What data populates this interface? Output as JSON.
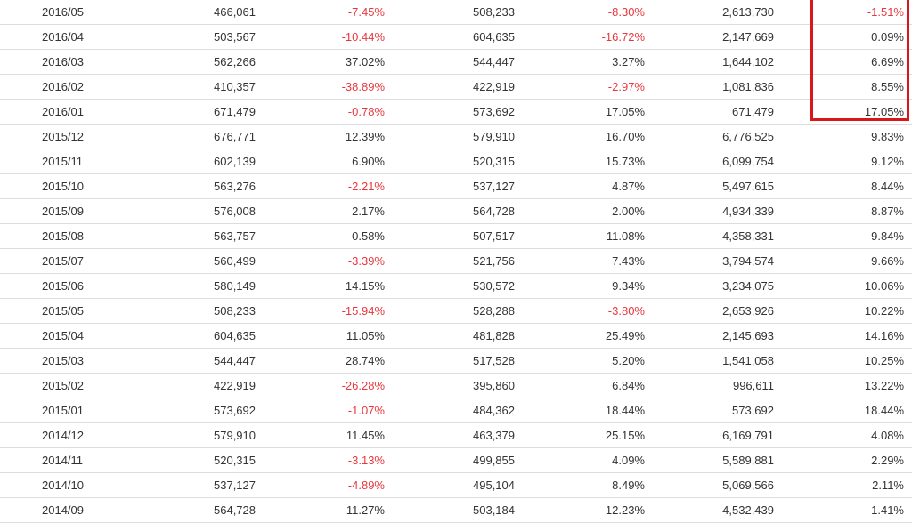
{
  "colors": {
    "negative": "#e8383d",
    "text": "#333333",
    "highlight_border": "#d9161c",
    "row_divider": "#dddddd"
  },
  "table": {
    "rows": [
      {
        "date": "2016/05",
        "v1": "466,061",
        "p1": "-7.45%",
        "v2": "508,233",
        "p2": "-8.30%",
        "v3": "2,613,730",
        "p3": "-1.51%"
      },
      {
        "date": "2016/04",
        "v1": "503,567",
        "p1": "-10.44%",
        "v2": "604,635",
        "p2": "-16.72%",
        "v3": "2,147,669",
        "p3": "0.09%"
      },
      {
        "date": "2016/03",
        "v1": "562,266",
        "p1": "37.02%",
        "v2": "544,447",
        "p2": "3.27%",
        "v3": "1,644,102",
        "p3": "6.69%"
      },
      {
        "date": "2016/02",
        "v1": "410,357",
        "p1": "-38.89%",
        "v2": "422,919",
        "p2": "-2.97%",
        "v3": "1,081,836",
        "p3": "8.55%"
      },
      {
        "date": "2016/01",
        "v1": "671,479",
        "p1": "-0.78%",
        "v2": "573,692",
        "p2": "17.05%",
        "v3": "671,479",
        "p3": "17.05%"
      },
      {
        "date": "2015/12",
        "v1": "676,771",
        "p1": "12.39%",
        "v2": "579,910",
        "p2": "16.70%",
        "v3": "6,776,525",
        "p3": "9.83%"
      },
      {
        "date": "2015/11",
        "v1": "602,139",
        "p1": "6.90%",
        "v2": "520,315",
        "p2": "15.73%",
        "v3": "6,099,754",
        "p3": "9.12%"
      },
      {
        "date": "2015/10",
        "v1": "563,276",
        "p1": "-2.21%",
        "v2": "537,127",
        "p2": "4.87%",
        "v3": "5,497,615",
        "p3": "8.44%"
      },
      {
        "date": "2015/09",
        "v1": "576,008",
        "p1": "2.17%",
        "v2": "564,728",
        "p2": "2.00%",
        "v3": "4,934,339",
        "p3": "8.87%"
      },
      {
        "date": "2015/08",
        "v1": "563,757",
        "p1": "0.58%",
        "v2": "507,517",
        "p2": "11.08%",
        "v3": "4,358,331",
        "p3": "9.84%"
      },
      {
        "date": "2015/07",
        "v1": "560,499",
        "p1": "-3.39%",
        "v2": "521,756",
        "p2": "7.43%",
        "v3": "3,794,574",
        "p3": "9.66%"
      },
      {
        "date": "2015/06",
        "v1": "580,149",
        "p1": "14.15%",
        "v2": "530,572",
        "p2": "9.34%",
        "v3": "3,234,075",
        "p3": "10.06%"
      },
      {
        "date": "2015/05",
        "v1": "508,233",
        "p1": "-15.94%",
        "v2": "528,288",
        "p2": "-3.80%",
        "v3": "2,653,926",
        "p3": "10.22%"
      },
      {
        "date": "2015/04",
        "v1": "604,635",
        "p1": "11.05%",
        "v2": "481,828",
        "p2": "25.49%",
        "v3": "2,145,693",
        "p3": "14.16%"
      },
      {
        "date": "2015/03",
        "v1": "544,447",
        "p1": "28.74%",
        "v2": "517,528",
        "p2": "5.20%",
        "v3": "1,541,058",
        "p3": "10.25%"
      },
      {
        "date": "2015/02",
        "v1": "422,919",
        "p1": "-26.28%",
        "v2": "395,860",
        "p2": "6.84%",
        "v3": "996,611",
        "p3": "13.22%"
      },
      {
        "date": "2015/01",
        "v1": "573,692",
        "p1": "-1.07%",
        "v2": "484,362",
        "p2": "18.44%",
        "v3": "573,692",
        "p3": "18.44%"
      },
      {
        "date": "2014/12",
        "v1": "579,910",
        "p1": "11.45%",
        "v2": "463,379",
        "p2": "25.15%",
        "v3": "6,169,791",
        "p3": "4.08%"
      },
      {
        "date": "2014/11",
        "v1": "520,315",
        "p1": "-3.13%",
        "v2": "499,855",
        "p2": "4.09%",
        "v3": "5,589,881",
        "p3": "2.29%"
      },
      {
        "date": "2014/10",
        "v1": "537,127",
        "p1": "-4.89%",
        "v2": "495,104",
        "p2": "8.49%",
        "v3": "5,069,566",
        "p3": "2.11%"
      },
      {
        "date": "2014/09",
        "v1": "564,728",
        "p1": "11.27%",
        "v2": "503,184",
        "p2": "12.23%",
        "v3": "4,532,439",
        "p3": "1.41%"
      }
    ]
  }
}
